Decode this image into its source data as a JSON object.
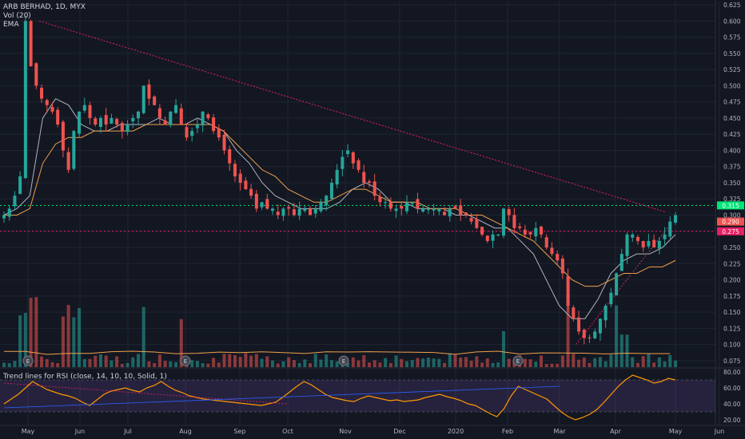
{
  "legend": {
    "title": "ARB BERHAD, 1D, MYX",
    "volume": "Vol (20)",
    "ema": "EMA"
  },
  "rsi_legend": "Trend lines for RSI (close, 14, 10, 10, Solid, 1)",
  "colors": {
    "background": "#131722",
    "up": "#26a69a",
    "down": "#ef5350",
    "ema_fast": "#b2b5be",
    "ema_slow": "#f0a04b",
    "rsi": "#ff9800",
    "rsi_band": "#7e57c2",
    "resistance": "#00e676",
    "support_label": "#e91e63",
    "trendline": "#e91e63"
  },
  "chart_data": [
    {
      "type": "candlestick",
      "title": "ARB BERHAD, 1D, MYX",
      "x_ticks": [
        "May",
        "Jun",
        "Jul",
        "Aug",
        "Sep",
        "Oct",
        "Nov",
        "Dec",
        "2020",
        "Feb",
        "Mar",
        "Apr",
        "May",
        "Jun"
      ],
      "y_ticks": [
        "0.625",
        "0.600",
        "0.575",
        "0.550",
        "0.525",
        "0.500",
        "0.475",
        "0.450",
        "0.425",
        "0.400",
        "0.375",
        "0.350",
        "0.325",
        "0.300",
        "0.275",
        "0.250",
        "0.225",
        "0.200",
        "0.175",
        "0.150",
        "0.125",
        "0.100",
        "0.075"
      ],
      "ylim": [
        0.065,
        0.63
      ],
      "close_path": [
        0.3,
        0.31,
        0.33,
        0.36,
        0.6,
        0.53,
        0.5,
        0.48,
        0.47,
        0.46,
        0.44,
        0.4,
        0.37,
        0.43,
        0.46,
        0.47,
        0.45,
        0.44,
        0.45,
        0.44,
        0.45,
        0.44,
        0.43,
        0.44,
        0.45,
        0.46,
        0.5,
        0.48,
        0.47,
        0.45,
        0.44,
        0.46,
        0.47,
        0.44,
        0.42,
        0.43,
        0.44,
        0.46,
        0.45,
        0.43,
        0.42,
        0.4,
        0.38,
        0.36,
        0.35,
        0.34,
        0.33,
        0.31,
        0.32,
        0.31,
        0.31,
        0.3,
        0.31,
        0.31,
        0.3,
        0.31,
        0.31,
        0.3,
        0.31,
        0.32,
        0.33,
        0.35,
        0.37,
        0.39,
        0.4,
        0.38,
        0.37,
        0.35,
        0.35,
        0.33,
        0.32,
        0.32,
        0.31,
        0.31,
        0.31,
        0.32,
        0.32,
        0.31,
        0.31,
        0.31,
        0.31,
        0.31,
        0.3,
        0.31,
        0.31,
        0.3,
        0.3,
        0.29,
        0.28,
        0.27,
        0.26,
        0.27,
        0.27,
        0.31,
        0.3,
        0.28,
        0.28,
        0.27,
        0.27,
        0.28,
        0.27,
        0.25,
        0.24,
        0.23,
        0.21,
        0.16,
        0.14,
        0.12,
        0.11,
        0.11,
        0.12,
        0.14,
        0.16,
        0.18,
        0.21,
        0.24,
        0.27,
        0.27,
        0.26,
        0.25,
        0.26,
        0.25,
        0.26,
        0.27,
        0.29,
        0.3
      ],
      "emas": [
        {
          "values": [
            0.3,
            0.31,
            0.33,
            0.45,
            0.48,
            0.47,
            0.44,
            0.43,
            0.43,
            0.44,
            0.44,
            0.44,
            0.45,
            0.44,
            0.44,
            0.45,
            0.44,
            0.43,
            0.4,
            0.38,
            0.35,
            0.33,
            0.32,
            0.31,
            0.31,
            0.31,
            0.32,
            0.34,
            0.35,
            0.34,
            0.32,
            0.32,
            0.31,
            0.31,
            0.31,
            0.3,
            0.3,
            0.29,
            0.28,
            0.28,
            0.26,
            0.24,
            0.2,
            0.16,
            0.14,
            0.14,
            0.17,
            0.21,
            0.23,
            0.24,
            0.24,
            0.25,
            0.27
          ]
        },
        {
          "values": [
            0.3,
            0.3,
            0.31,
            0.38,
            0.41,
            0.42,
            0.42,
            0.43,
            0.43,
            0.43,
            0.43,
            0.44,
            0.44,
            0.44,
            0.44,
            0.44,
            0.44,
            0.43,
            0.41,
            0.39,
            0.37,
            0.36,
            0.34,
            0.33,
            0.32,
            0.32,
            0.33,
            0.34,
            0.34,
            0.33,
            0.32,
            0.32,
            0.32,
            0.31,
            0.31,
            0.31,
            0.3,
            0.3,
            0.29,
            0.28,
            0.27,
            0.26,
            0.24,
            0.22,
            0.2,
            0.19,
            0.19,
            0.2,
            0.21,
            0.21,
            0.22,
            0.22,
            0.23
          ]
        }
      ],
      "price_labels": [
        {
          "text": "0.315",
          "value": 0.315,
          "color": "#00e676"
        },
        {
          "text": "0.290",
          "value": 0.29,
          "color": "#ef5350"
        },
        {
          "text": "0.275",
          "value": 0.275,
          "color": "#e91e63"
        }
      ],
      "horizontal_lines": [
        {
          "value": 0.315,
          "color": "#00e676"
        },
        {
          "value": 0.275,
          "color": "#e91e63"
        }
      ],
      "trendlines": [
        {
          "from": [
            0.055,
            0.6
          ],
          "to": [
            0.93,
            0.305
          ]
        },
        {
          "from": [
            0.805,
            0.1
          ],
          "to": [
            0.935,
            0.283
          ]
        }
      ],
      "event_markers": [
        "E",
        "E",
        "E",
        "E"
      ]
    },
    {
      "type": "line",
      "title": "Trend lines for RSI (close, 14, 10, 10, Solid, 1)",
      "y_ticks": [
        "80.00",
        "60.00",
        "40.00",
        "20.00"
      ],
      "ylim": [
        14,
        84
      ],
      "band": [
        30,
        70
      ],
      "values": [
        40,
        46,
        52,
        60,
        68,
        63,
        58,
        55,
        52,
        50,
        47,
        42,
        38,
        45,
        52,
        56,
        58,
        60,
        57,
        55,
        60,
        63,
        68,
        62,
        57,
        54,
        50,
        48,
        46,
        45,
        44,
        43,
        42,
        41,
        40,
        39,
        38,
        40,
        42,
        48,
        55,
        62,
        68,
        64,
        58,
        52,
        48,
        46,
        44,
        43,
        47,
        50,
        48,
        46,
        44,
        45,
        43,
        44,
        45,
        48,
        50,
        52,
        49,
        47,
        44,
        40,
        38,
        33,
        28,
        24,
        34,
        50,
        62,
        58,
        54,
        50,
        46,
        38,
        30,
        24,
        20,
        23,
        27,
        33,
        42,
        52,
        62,
        70,
        76,
        73,
        70,
        66,
        68,
        72,
        70
      ]
    }
  ]
}
